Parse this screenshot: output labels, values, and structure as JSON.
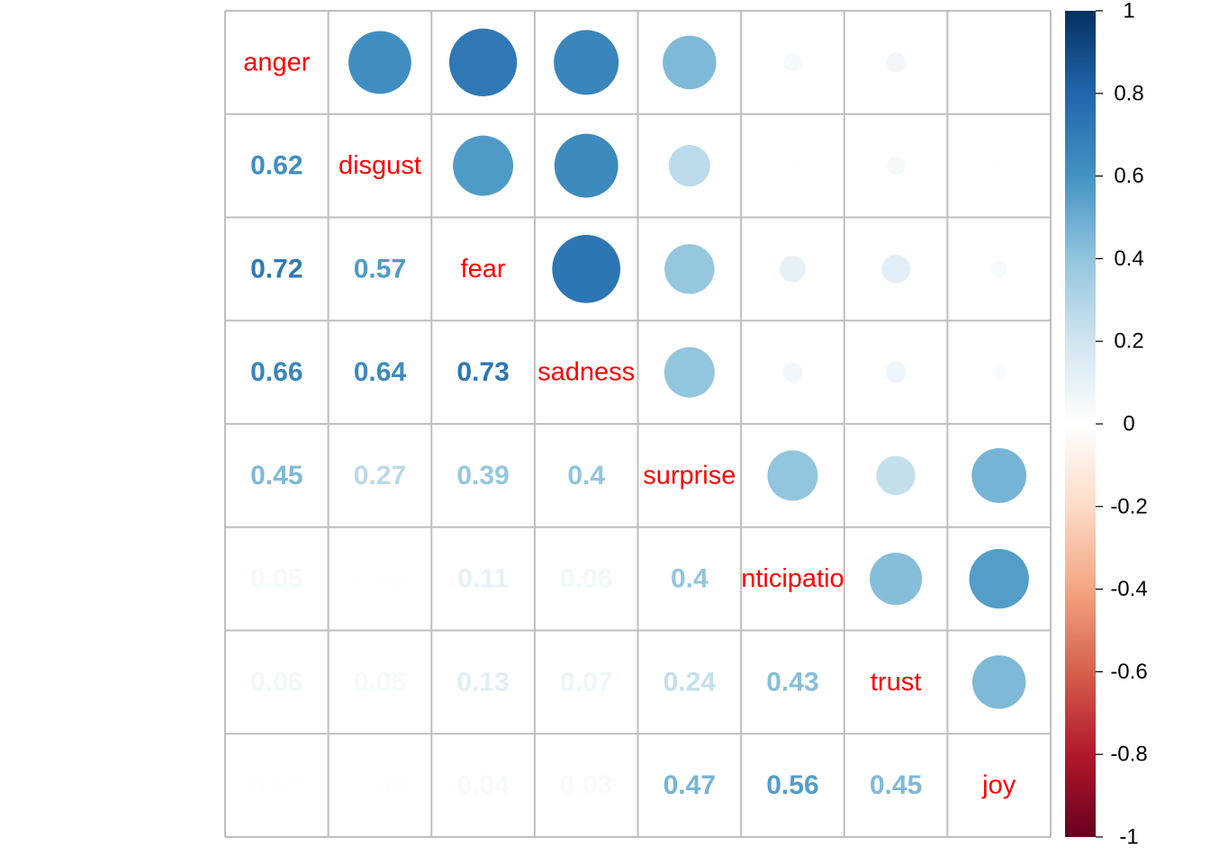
{
  "chart_data": {
    "type": "heatmap",
    "subtype": "correlation-matrix",
    "upper": "circle",
    "lower": "number",
    "variables": [
      "anger",
      "disgust",
      "fear",
      "sadness",
      "surprise",
      "anticipation",
      "trust",
      "joy"
    ],
    "matrix": [
      [
        1.0,
        0.62,
        0.72,
        0.66,
        0.45,
        0.05,
        0.06,
        0.01
      ],
      [
        0.62,
        1.0,
        0.57,
        0.64,
        0.27,
        0.01,
        0.05,
        0.01
      ],
      [
        0.72,
        0.57,
        1.0,
        0.73,
        0.39,
        0.11,
        0.13,
        0.04
      ],
      [
        0.66,
        0.64,
        0.73,
        1.0,
        0.4,
        0.06,
        0.07,
        0.03
      ],
      [
        0.45,
        0.27,
        0.39,
        0.4,
        1.0,
        0.4,
        0.24,
        0.47
      ],
      [
        0.05,
        0.01,
        0.11,
        0.06,
        0.4,
        1.0,
        0.43,
        0.56
      ],
      [
        0.06,
        0.05,
        0.13,
        0.07,
        0.24,
        0.43,
        1.0,
        0.45
      ],
      [
        0.01,
        0.01,
        0.04,
        0.03,
        0.47,
        0.56,
        0.45,
        1.0
      ]
    ],
    "lower_labels": [
      [
        "",
        "",
        "",
        "",
        "",
        "",
        "",
        ""
      ],
      [
        "0.62",
        "",
        "",
        "",
        "",
        "",
        "",
        ""
      ],
      [
        "0.72",
        "0.57",
        "",
        "",
        "",
        "",
        "",
        ""
      ],
      [
        "0.66",
        "0.64",
        "0.73",
        "",
        "",
        "",
        "",
        ""
      ],
      [
        "0.45",
        "0.27",
        "0.39",
        "0.4",
        "",
        "",
        "",
        ""
      ],
      [
        "0.05",
        "0.01",
        "0.11",
        "0.06",
        "0.4",
        "",
        "",
        ""
      ],
      [
        "0.06",
        "0.05",
        "0.13",
        "0.07",
        "0.24",
        "0.43",
        "",
        ""
      ],
      [
        "0.01",
        "0.01",
        "0.04",
        "0.03",
        "0.47",
        "0.56",
        "0.45",
        ""
      ]
    ],
    "colorbar": {
      "range": [
        -1,
        1
      ],
      "ticks": [
        "1",
        "0.8",
        "0.6",
        "0.4",
        "0.2",
        "0",
        "-0.2",
        "-0.4",
        "-0.6",
        "-0.8",
        "-1"
      ],
      "palette": [
        "#67001F",
        "#B2182B",
        "#D6604D",
        "#F4A582",
        "#FDDBC7",
        "#FFFFFF",
        "#D1E5F0",
        "#92C5DE",
        "#4393C3",
        "#2166AC",
        "#053061"
      ]
    },
    "label_color": "#ff0000",
    "grid_color": "#bebebe"
  }
}
